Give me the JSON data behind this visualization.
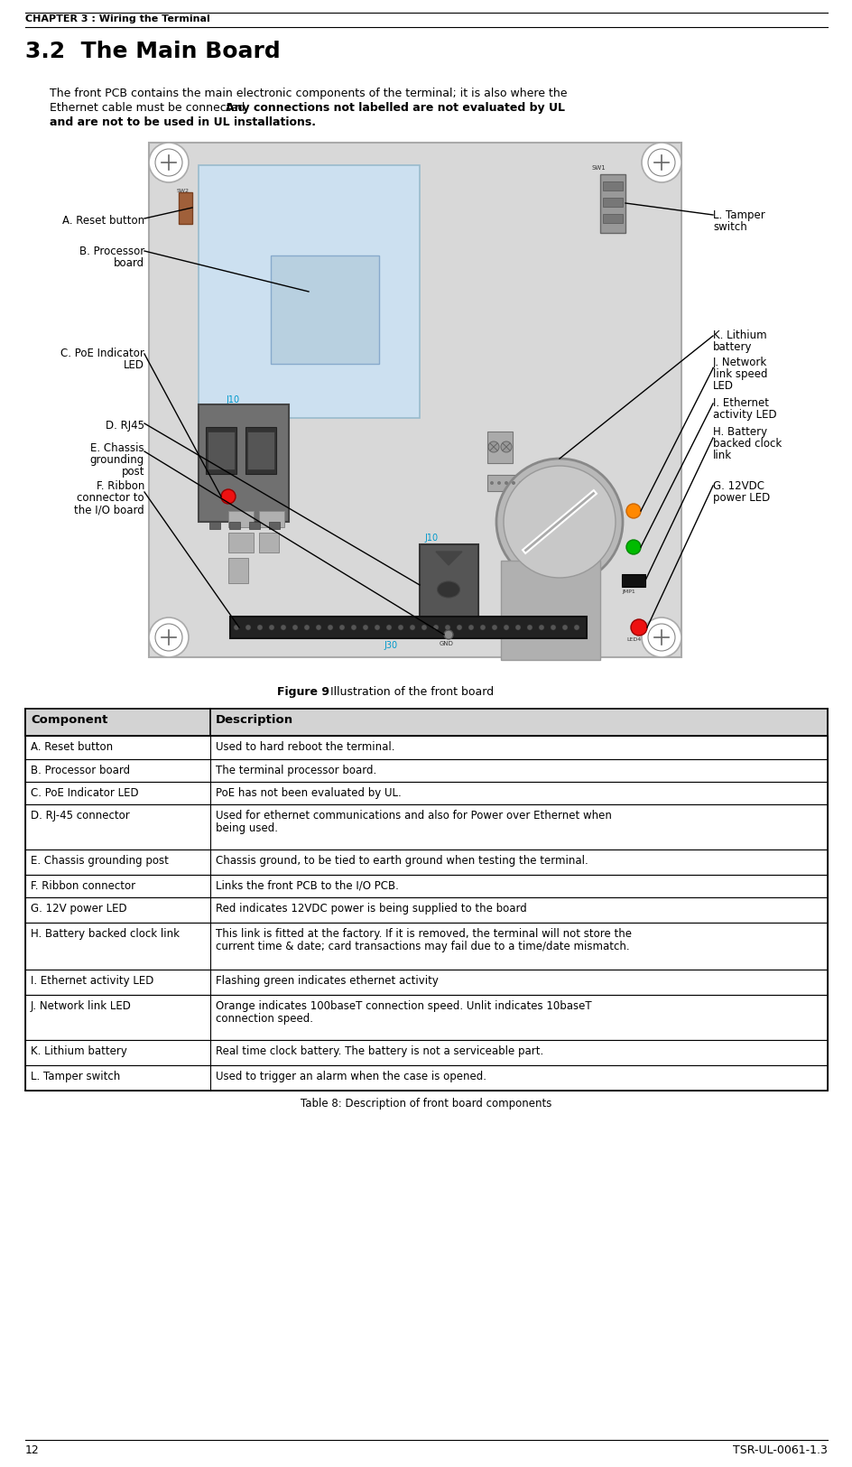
{
  "chapter_header": "CHAPTER 3 : Wiring the Terminal",
  "section_title": "3.2  The Main Board",
  "intro_line1": "The front PCB contains the main electronic components of the terminal; it is also where the",
  "intro_line2_normal": "Ethernet cable must be connected. ",
  "intro_line2_bold": "Any connections not labelled are not evaluated by UL",
  "intro_line3_bold": "and are not to be used in UL installations.",
  "figure_caption_bold": "Figure 9",
  "figure_caption_normal": " Illustration of the front board",
  "table_caption": "Table 8: Description of front board components",
  "table_header": [
    "Component",
    "Description"
  ],
  "table_rows": [
    [
      "A. Reset button",
      "Used to hard reboot the terminal."
    ],
    [
      "B. Processor board",
      "The terminal processor board."
    ],
    [
      "C. PoE Indicator LED",
      "PoE has not been evaluated by UL."
    ],
    [
      "D. RJ-45 connector",
      "Used for ethernet communications and also for Power over Ethernet when\nbeing used."
    ],
    [
      "E. Chassis grounding post",
      "Chassis ground, to be tied to earth ground when testing the terminal."
    ],
    [
      "F. Ribbon connector",
      "Links the front PCB to the I/O PCB."
    ],
    [
      "G. 12V power LED",
      "Red indicates 12VDC power is being supplied to the board"
    ],
    [
      "H. Battery backed clock link",
      "This link is fitted at the factory. If it is removed, the terminal will not store the\ncurrent time & date; card transactions may fail due to a time/date mismatch."
    ],
    [
      "I. Ethernet activity LED",
      "Flashing green indicates ethernet activity"
    ],
    [
      "J. Network link LED",
      "Orange indicates 100baseT connection speed. Unlit indicates 10baseT\nconnection speed."
    ],
    [
      "K. Lithium battery",
      "Real time clock battery. The battery is not a serviceable part."
    ],
    [
      "L. Tamper switch",
      "Used to trigger an alarm when the case is opened."
    ]
  ],
  "page_number": "12",
  "doc_number": "TSR-UL-0061-1.3",
  "bg_color": "#ffffff",
  "table_header_bg": "#d3d3d3",
  "table_border_color": "#000000",
  "row_bg_even": "#ffffff",
  "row_bg_odd": "#ffffff"
}
